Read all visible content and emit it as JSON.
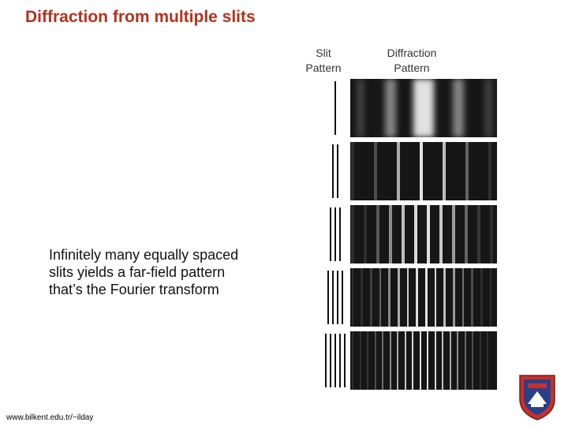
{
  "slide": {
    "title": "Diffraction from multiple slits",
    "column_headers": {
      "slit": "Slit\nPattern",
      "diffraction": "Diffraction\nPattern"
    },
    "body_lines": [
      "Infinitely many equally spaced",
      "slits yields a far-field pattern",
      "that’s the Fourier transform"
    ],
    "footer_url": "www.bilkent.edu.tr/~ilday",
    "figure_rows": [
      {
        "slits": 1
      },
      {
        "slits": 2
      },
      {
        "slits": 3
      },
      {
        "slits": 4
      },
      {
        "slits": 5
      }
    ],
    "colors": {
      "title": "#b5321c",
      "seal_red": "#c3322a",
      "seal_blue": "#2a3f8a"
    }
  }
}
